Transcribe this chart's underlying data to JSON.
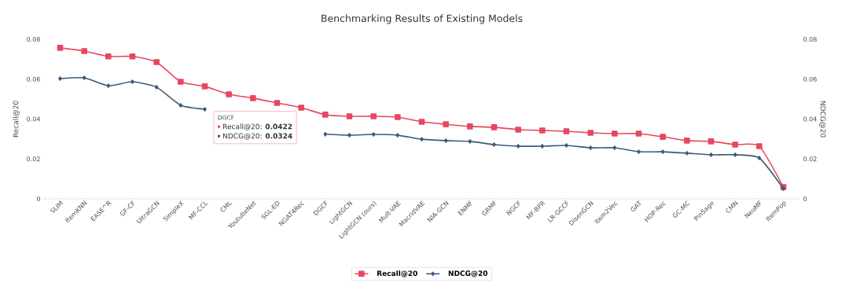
{
  "chart_data": {
    "type": "line",
    "title": "Benchmarking Results of Existing Models",
    "ylabel": "Recall@20",
    "y2label": "NDCG@20",
    "categories": [
      "SLIM",
      "ItemKNN",
      "EASE^R",
      "GF-CF",
      "UltraGCN",
      "SimpleX",
      "MF-CCL",
      "CML",
      "YoutubeNet",
      "SGL-ED",
      "NGAT4Rec",
      "DGCF",
      "LightGCN",
      "LightGCN (ours)",
      "Mult-VAE",
      "MacridVAE",
      "NIA-GCN",
      "ENMF",
      "GRMF",
      "NGCF",
      "MF-BPR",
      "LR-GCCF",
      "DisenGCN",
      "Item2Vec",
      "GAT",
      "HOP-Rec",
      "GC-MC",
      "PinSage",
      "CMN",
      "NeuMF",
      "ItemPop"
    ],
    "series": [
      {
        "name": "Recall@20",
        "color": "#e8475f",
        "marker": "square",
        "values": [
          0.0757,
          0.0741,
          0.0714,
          0.0714,
          0.0686,
          0.0587,
          0.0564,
          0.0524,
          0.0505,
          0.0481,
          0.0457,
          0.0422,
          0.0414,
          0.0414,
          0.041,
          0.0386,
          0.0374,
          0.0363,
          0.0359,
          0.0347,
          0.0343,
          0.0339,
          0.0331,
          0.0327,
          0.0327,
          0.0311,
          0.0292,
          0.0288,
          0.0272,
          0.0264,
          0.0059
        ]
      },
      {
        "name": "NDCG@20",
        "color": "#3b5a7a",
        "marker": "diamond",
        "axis": "y2",
        "values": [
          0.0603,
          0.0607,
          0.0567,
          0.0587,
          0.056,
          0.0469,
          0.0449,
          null,
          null,
          null,
          null,
          0.0324,
          0.0319,
          0.0323,
          0.0319,
          0.0299,
          0.0292,
          0.0288,
          0.0272,
          0.0264,
          0.0264,
          0.0268,
          0.0256,
          0.0256,
          0.0236,
          0.0236,
          0.0229,
          0.0221,
          0.0221,
          0.0205,
          0.0051
        ]
      }
    ],
    "ylim": [
      0,
      0.08
    ],
    "yticks": [
      0,
      0.02,
      0.04,
      0.06,
      0.08
    ],
    "y2lim": [
      0,
      0.08
    ],
    "y2ticks": [
      0,
      0.02,
      0.04,
      0.06,
      0.08
    ],
    "grid": false,
    "legend": "bottom",
    "line_style": "solid",
    "annotations": [
      "DGCF",
      "Recall@20: **0.0422**",
      "NDCG@20: **0.0324**"
    ]
  }
}
